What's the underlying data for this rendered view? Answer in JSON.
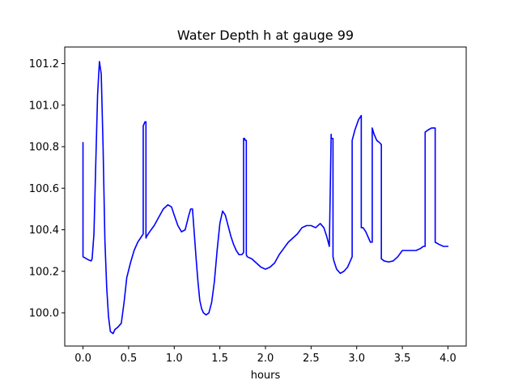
{
  "chart_data": {
    "type": "line",
    "title": "Water Depth h at gauge 99",
    "xlabel": "hours",
    "ylabel": "",
    "xlim": [
      -0.2,
      4.2
    ],
    "ylim": [
      99.84,
      101.28
    ],
    "xticks": [
      0.0,
      0.5,
      1.0,
      1.5,
      2.0,
      2.5,
      3.0,
      3.5,
      4.0
    ],
    "xtick_labels": [
      "0.0",
      "0.5",
      "1.0",
      "1.5",
      "2.0",
      "2.5",
      "3.0",
      "3.5",
      "4.0"
    ],
    "yticks": [
      100.0,
      100.2,
      100.4,
      100.6,
      100.8,
      101.0,
      101.2
    ],
    "ytick_labels": [
      "100.0",
      "100.2",
      "100.4",
      "100.6",
      "100.8",
      "101.0",
      "101.2"
    ],
    "grid": false,
    "colors": {
      "series": "#0000ff",
      "axes": "#000000",
      "background": "#ffffff"
    },
    "series": [
      {
        "name": "",
        "x": [
          0.0,
          0.0,
          0.02,
          0.06,
          0.09,
          0.1,
          0.12,
          0.14,
          0.16,
          0.18,
          0.2,
          0.22,
          0.24,
          0.26,
          0.28,
          0.3,
          0.33,
          0.35,
          0.38,
          0.42,
          0.45,
          0.48,
          0.52,
          0.56,
          0.6,
          0.63,
          0.66,
          0.66,
          0.67,
          0.68,
          0.69,
          0.69,
          0.7,
          0.73,
          0.78,
          0.83,
          0.88,
          0.93,
          0.97,
          1.0,
          1.04,
          1.08,
          1.12,
          1.16,
          1.18,
          1.2,
          1.22,
          1.24,
          1.26,
          1.28,
          1.3,
          1.32,
          1.35,
          1.38,
          1.41,
          1.44,
          1.47,
          1.5,
          1.53,
          1.56,
          1.59,
          1.62,
          1.65,
          1.68,
          1.71,
          1.74,
          1.76,
          1.76,
          1.77,
          1.78,
          1.79,
          1.79,
          1.8,
          1.85,
          1.9,
          1.95,
          2.0,
          2.05,
          2.1,
          2.15,
          2.2,
          2.25,
          2.3,
          2.35,
          2.4,
          2.45,
          2.5,
          2.55,
          2.6,
          2.64,
          2.67,
          2.7,
          2.72,
          2.72,
          2.74,
          2.74,
          2.75,
          2.78,
          2.82,
          2.86,
          2.9,
          2.93,
          2.95,
          2.95,
          2.98,
          3.02,
          3.05,
          3.05,
          3.07,
          3.1,
          3.13,
          3.15,
          3.17,
          3.17,
          3.19,
          3.22,
          3.25,
          3.27,
          3.27,
          3.3,
          3.35,
          3.4,
          3.45,
          3.5,
          3.55,
          3.6,
          3.65,
          3.7,
          3.73,
          3.75,
          3.75,
          3.78,
          3.82,
          3.86,
          3.86,
          3.9,
          3.95,
          4.0
        ],
        "y": [
          100.82,
          100.27,
          100.265,
          100.255,
          100.25,
          100.26,
          100.38,
          100.72,
          101.05,
          101.21,
          101.15,
          100.8,
          100.35,
          100.12,
          99.98,
          99.91,
          99.9,
          99.92,
          99.93,
          99.95,
          100.05,
          100.17,
          100.24,
          100.3,
          100.34,
          100.36,
          100.38,
          100.9,
          100.91,
          100.92,
          100.92,
          100.36,
          100.37,
          100.39,
          100.42,
          100.46,
          100.5,
          100.52,
          100.51,
          100.47,
          100.42,
          100.39,
          100.4,
          100.47,
          100.5,
          100.5,
          100.38,
          100.26,
          100.15,
          100.06,
          100.02,
          100.0,
          99.99,
          100.0,
          100.05,
          100.15,
          100.3,
          100.43,
          100.49,
          100.47,
          100.42,
          100.37,
          100.33,
          100.3,
          100.28,
          100.28,
          100.29,
          100.84,
          100.84,
          100.83,
          100.83,
          100.28,
          100.27,
          100.26,
          100.24,
          100.22,
          100.21,
          100.22,
          100.24,
          100.28,
          100.31,
          100.34,
          100.36,
          100.38,
          100.41,
          100.42,
          100.42,
          100.41,
          100.43,
          100.41,
          100.37,
          100.32,
          100.86,
          100.84,
          100.84,
          100.27,
          100.25,
          100.21,
          100.19,
          100.2,
          100.22,
          100.25,
          100.27,
          100.83,
          100.88,
          100.93,
          100.95,
          100.41,
          100.41,
          100.39,
          100.36,
          100.34,
          100.34,
          100.89,
          100.86,
          100.83,
          100.82,
          100.81,
          100.26,
          100.25,
          100.245,
          100.25,
          100.27,
          100.3,
          100.3,
          100.3,
          100.3,
          100.31,
          100.32,
          100.32,
          100.87,
          100.88,
          100.89,
          100.89,
          100.34,
          100.33,
          100.32,
          100.32
        ]
      }
    ]
  }
}
